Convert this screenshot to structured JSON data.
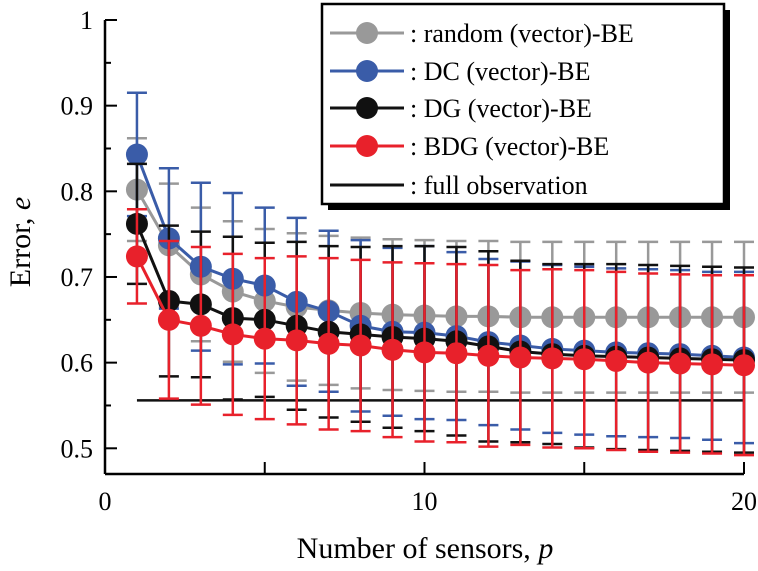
{
  "chart_data": {
    "type": "line",
    "xlabel": "Number of sensors, ",
    "xlabel_var": "p",
    "ylabel": "Error, ",
    "ylabel_var": "e",
    "xlim": [
      0,
      20
    ],
    "ylim": [
      0.47,
      1.0
    ],
    "xticks": [
      0,
      10,
      20
    ],
    "yticks": [
      0.5,
      0.6,
      0.7,
      0.8,
      0.9,
      1
    ],
    "ytick_labels": [
      "0.5",
      "0.6",
      "0.7",
      "0.8",
      "0.9",
      "1"
    ],
    "legend_position": "top-right",
    "x": [
      1,
      2,
      3,
      4,
      5,
      6,
      7,
      8,
      9,
      10,
      11,
      12,
      13,
      14,
      15,
      16,
      17,
      18,
      19,
      20
    ],
    "series": [
      {
        "name": ": random (vector)-BE",
        "color": "#999999",
        "values": [
          0.802,
          0.737,
          0.703,
          0.683,
          0.672,
          0.665,
          0.661,
          0.658,
          0.656,
          0.655,
          0.654,
          0.654,
          0.653,
          0.653,
          0.653,
          0.653,
          0.653,
          0.653,
          0.653,
          0.653
        ],
        "err": [
          0.06,
          0.072,
          0.078,
          0.082,
          0.084,
          0.086,
          0.087,
          0.088,
          0.088,
          0.088,
          0.088,
          0.088,
          0.088,
          0.088,
          0.088,
          0.088,
          0.088,
          0.088,
          0.088,
          0.088
        ]
      },
      {
        "name": ": DC (vector)-BE",
        "color": "#3a5ca8",
        "values": [
          0.843,
          0.745,
          0.712,
          0.698,
          0.69,
          0.671,
          0.66,
          0.643,
          0.636,
          0.635,
          0.631,
          0.624,
          0.62,
          0.616,
          0.614,
          0.612,
          0.611,
          0.61,
          0.608,
          0.606
        ],
        "err": [
          0.072,
          0.082,
          0.098,
          0.1,
          0.091,
          0.098,
          0.094,
          0.1,
          0.098,
          0.101,
          0.098,
          0.097,
          0.098,
          0.098,
          0.098,
          0.098,
          0.098,
          0.098,
          0.098,
          0.1
        ]
      },
      {
        "name": ": DG (vector)-BE",
        "color": "#111111",
        "values": [
          0.762,
          0.672,
          0.668,
          0.652,
          0.65,
          0.643,
          0.636,
          0.633,
          0.63,
          0.628,
          0.625,
          0.619,
          0.613,
          0.61,
          0.608,
          0.607,
          0.606,
          0.605,
          0.604,
          0.603
        ],
        "err": [
          0.07,
          0.088,
          0.085,
          0.095,
          0.09,
          0.098,
          0.1,
          0.102,
          0.106,
          0.108,
          0.11,
          0.111,
          0.106,
          0.105,
          0.107,
          0.108,
          0.108,
          0.108,
          0.108,
          0.108
        ]
      },
      {
        "name": ": BDG (vector)-BE",
        "color": "#e8212b",
        "values": [
          0.724,
          0.65,
          0.643,
          0.633,
          0.628,
          0.626,
          0.622,
          0.62,
          0.615,
          0.612,
          0.611,
          0.608,
          0.606,
          0.605,
          0.604,
          0.602,
          0.6,
          0.599,
          0.598,
          0.597
        ],
        "err": [
          0.055,
          0.092,
          0.092,
          0.094,
          0.094,
          0.098,
          0.1,
          0.1,
          0.102,
          0.104,
          0.104,
          0.106,
          0.102,
          0.104,
          0.104,
          0.104,
          0.104,
          0.104,
          0.104,
          0.105
        ]
      }
    ],
    "reference_line": {
      "name": ": full observation",
      "color": "#111111",
      "value": 0.556,
      "x_start": 1,
      "x_end": 20
    }
  }
}
